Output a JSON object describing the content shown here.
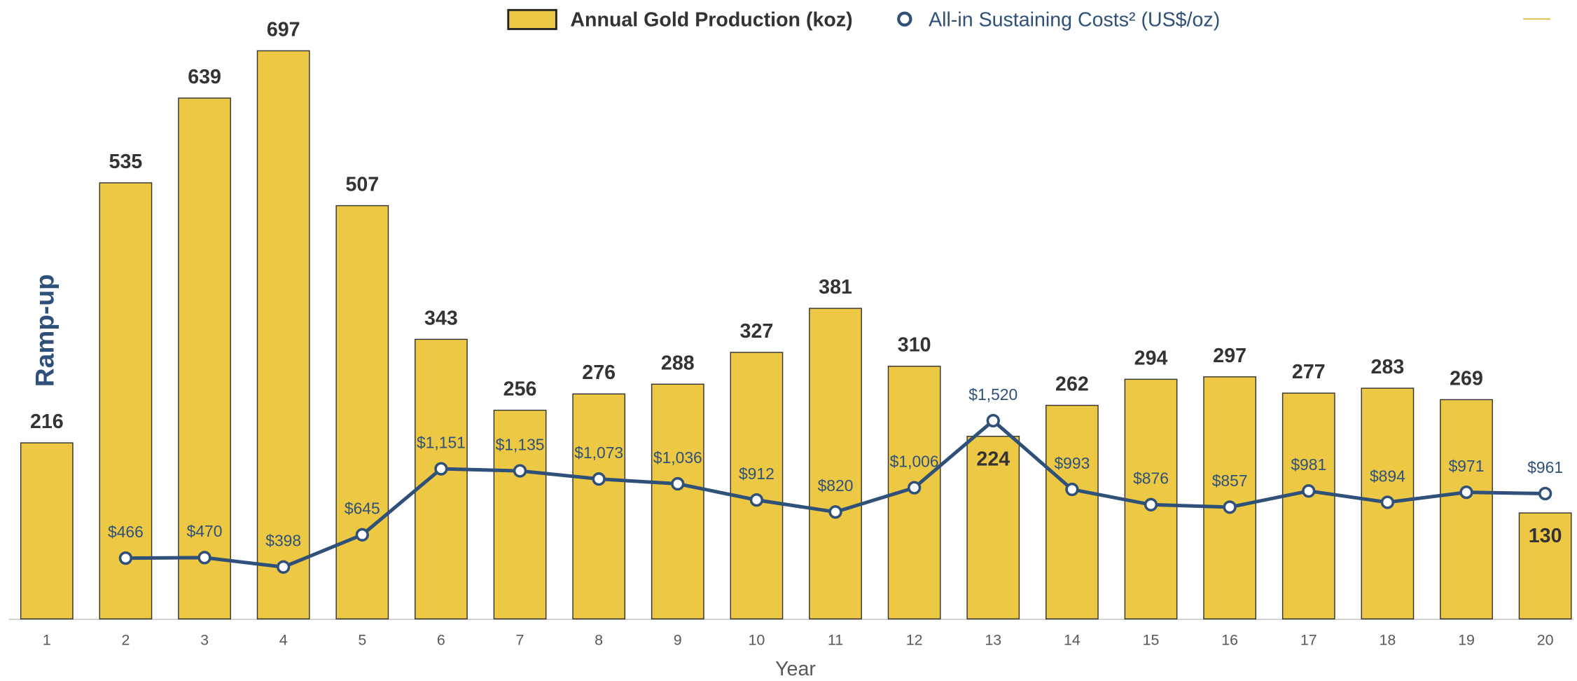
{
  "chart_data": {
    "type": "bar",
    "x_label": "Year",
    "annotation": "Ramp-up",
    "categories": [
      "1",
      "2",
      "3",
      "4",
      "5",
      "6",
      "7",
      "8",
      "9",
      "10",
      "11",
      "12",
      "13",
      "14",
      "15",
      "16",
      "17",
      "18",
      "19",
      "20"
    ],
    "series": [
      {
        "name": "Annual Gold Production (koz)",
        "type": "bar",
        "color": "#ECC844",
        "values": [
          216,
          535,
          639,
          697,
          507,
          343,
          256,
          276,
          288,
          327,
          381,
          310,
          224,
          262,
          294,
          297,
          277,
          283,
          269,
          130
        ]
      },
      {
        "name": "All-in Sustaining Costs² (US$/oz)",
        "type": "line",
        "axis": "y2",
        "color": "#2F5078",
        "values": [
          null,
          466,
          470,
          398,
          645,
          1151,
          1135,
          1073,
          1036,
          912,
          820,
          1006,
          1520,
          993,
          876,
          857,
          981,
          894,
          971,
          961
        ],
        "value_labels": [
          null,
          "$466",
          "$470",
          "$398",
          "$645",
          "$1,151",
          "$1,135",
          "$1,073",
          "$1,036",
          "$912",
          "$820",
          "$1,006",
          "$1,520",
          "$993",
          "$876",
          "$857",
          "$981",
          "$894",
          "$971",
          "$961"
        ]
      }
    ],
    "ylim": [
      0,
      720
    ],
    "y2lim": [
      0,
      4500
    ],
    "legend": "top"
  }
}
